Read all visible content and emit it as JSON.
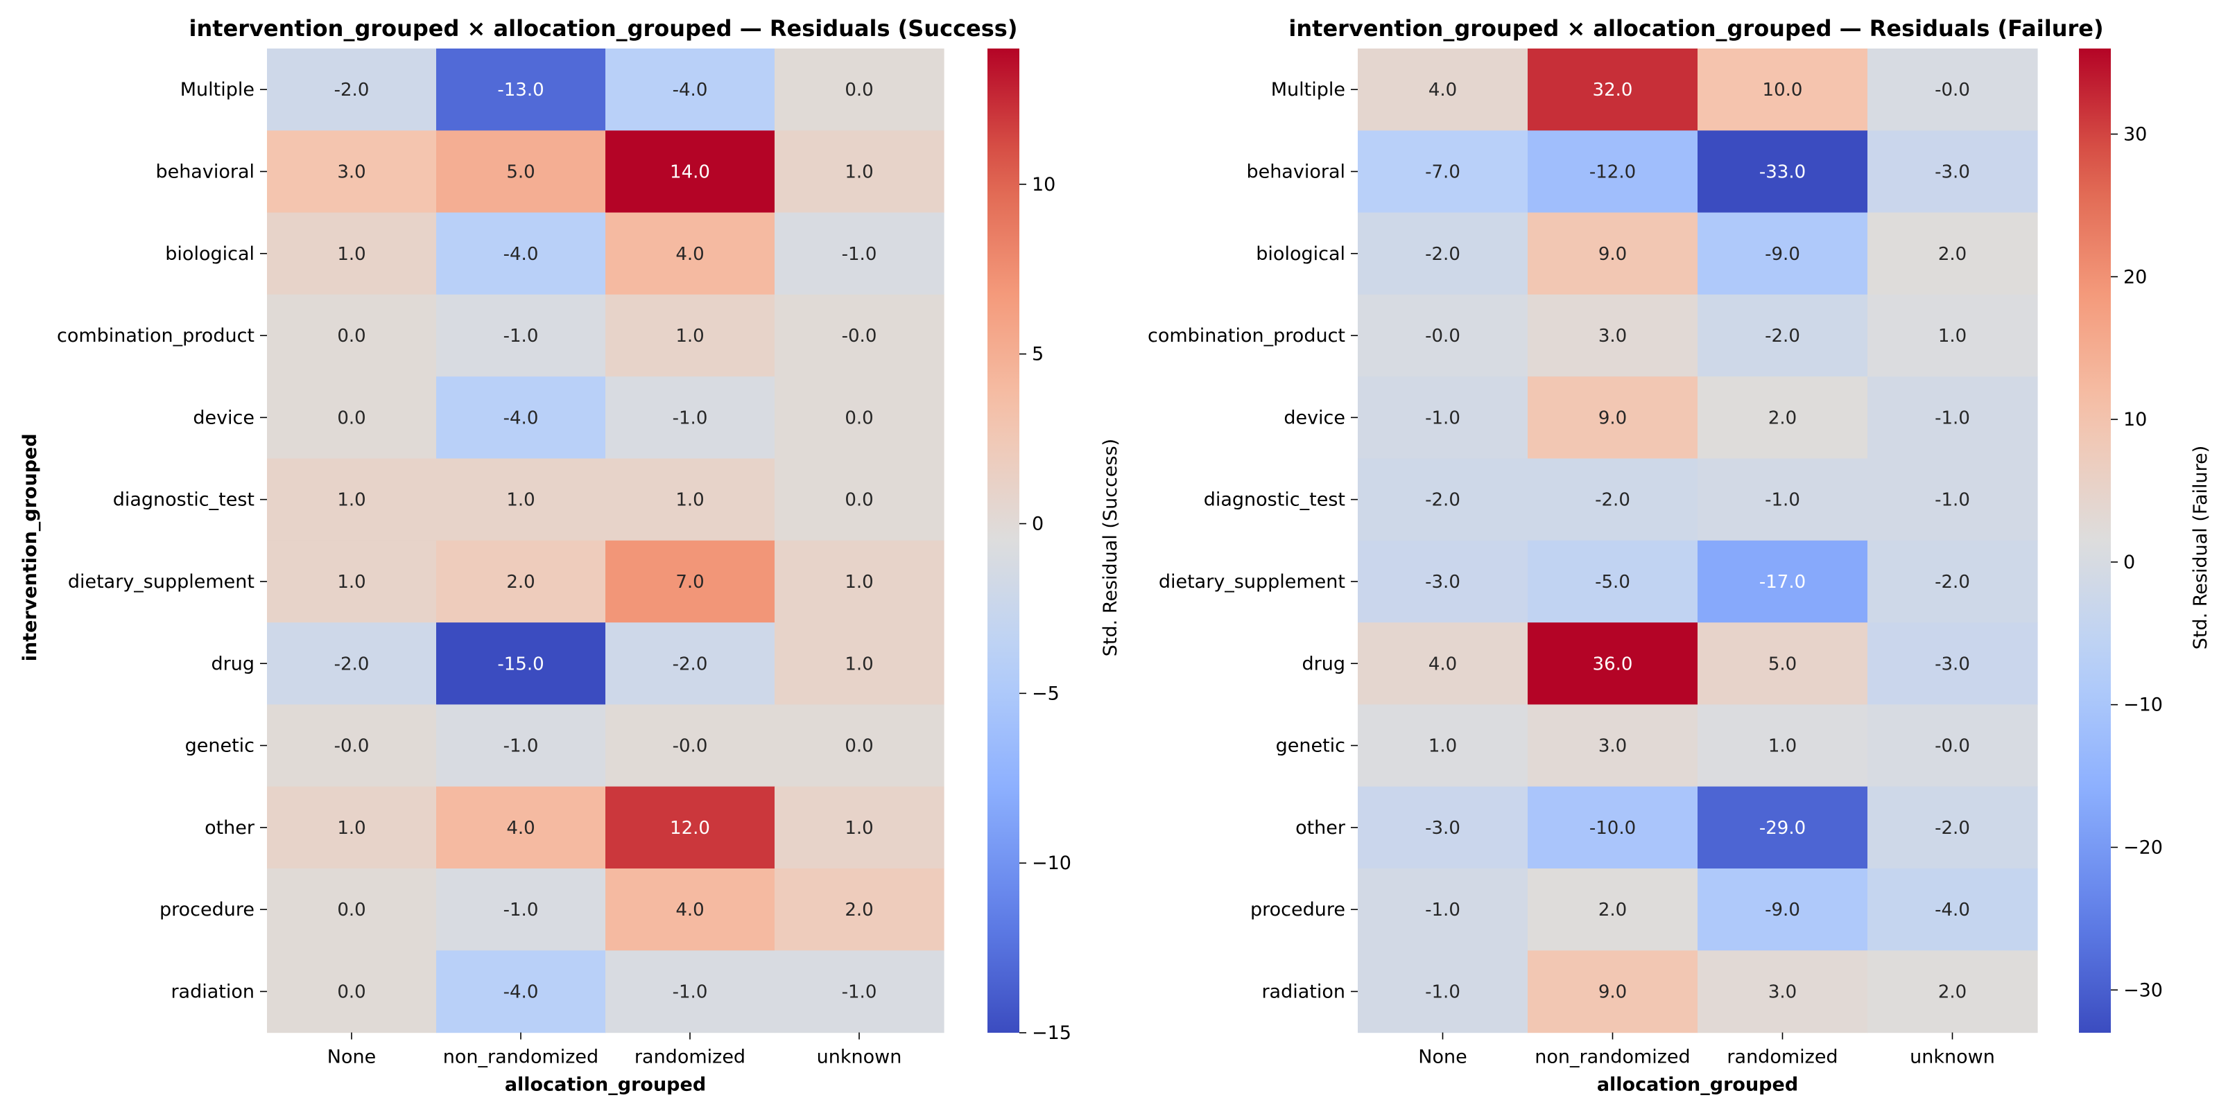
{
  "chart_data": [
    {
      "type": "heatmap",
      "title": "intervention_grouped × allocation_grouped — Residuals (Success)",
      "xlabel": "allocation_grouped",
      "ylabel": "intervention_grouped",
      "colorbar_label": "Std. Residual (Success)",
      "colormap": "coolwarm",
      "vmin": -15,
      "vmax": 14,
      "colorbar_ticks": [
        -15,
        -10,
        -5,
        0,
        5,
        10
      ],
      "colorbar_tick_labels": [
        "−15",
        "−10",
        "−5",
        "0",
        "5",
        "10"
      ],
      "x_categories": [
        "None",
        "non_randomized",
        "randomized",
        "unknown"
      ],
      "y_categories": [
        "Multiple",
        "behavioral",
        "biological",
        "combination_product",
        "device",
        "diagnostic_test",
        "dietary_supplement",
        "drug",
        "genetic",
        "other",
        "procedure",
        "radiation"
      ],
      "values": [
        [
          -2.0,
          -13.0,
          -4.0,
          0.0
        ],
        [
          3.0,
          5.0,
          14.0,
          1.0
        ],
        [
          1.0,
          -4.0,
          4.0,
          -1.0
        ],
        [
          0.0,
          -1.0,
          1.0,
          -0.0
        ],
        [
          0.0,
          -4.0,
          -1.0,
          0.0
        ],
        [
          1.0,
          1.0,
          1.0,
          0.0
        ],
        [
          1.0,
          2.0,
          7.0,
          1.0
        ],
        [
          -2.0,
          -15.0,
          -2.0,
          1.0
        ],
        [
          -0.0,
          -1.0,
          -0.0,
          0.0
        ],
        [
          1.0,
          4.0,
          12.0,
          1.0
        ],
        [
          0.0,
          -1.0,
          4.0,
          2.0
        ],
        [
          0.0,
          -4.0,
          -1.0,
          -1.0
        ]
      ],
      "annotations": [
        [
          "-2.0",
          "-13.0",
          "-4.0",
          "0.0"
        ],
        [
          "3.0",
          "5.0",
          "14.0",
          "1.0"
        ],
        [
          "1.0",
          "-4.0",
          "4.0",
          "-1.0"
        ],
        [
          "0.0",
          "-1.0",
          "1.0",
          "-0.0"
        ],
        [
          "0.0",
          "-4.0",
          "-1.0",
          "0.0"
        ],
        [
          "1.0",
          "1.0",
          "1.0",
          "0.0"
        ],
        [
          "1.0",
          "2.0",
          "7.0",
          "1.0"
        ],
        [
          "-2.0",
          "-15.0",
          "-2.0",
          "1.0"
        ],
        [
          "-0.0",
          "-1.0",
          "-0.0",
          "0.0"
        ],
        [
          "1.0",
          "4.0",
          "12.0",
          "1.0"
        ],
        [
          "0.0",
          "-1.0",
          "4.0",
          "2.0"
        ],
        [
          "0.0",
          "-4.0",
          "-1.0",
          "-1.0"
        ]
      ]
    },
    {
      "type": "heatmap",
      "title": "intervention_grouped × allocation_grouped — Residuals (Failure)",
      "xlabel": "allocation_grouped",
      "ylabel": "",
      "colorbar_label": "Std. Residual (Failure)",
      "colormap": "coolwarm",
      "vmin": -33,
      "vmax": 36,
      "colorbar_ticks": [
        -30,
        -20,
        -10,
        0,
        10,
        20,
        30
      ],
      "colorbar_tick_labels": [
        "−30",
        "−20",
        "−10",
        "0",
        "10",
        "20",
        "30"
      ],
      "x_categories": [
        "None",
        "non_randomized",
        "randomized",
        "unknown"
      ],
      "y_categories": [
        "Multiple",
        "behavioral",
        "biological",
        "combination_product",
        "device",
        "diagnostic_test",
        "dietary_supplement",
        "drug",
        "genetic",
        "other",
        "procedure",
        "radiation"
      ],
      "values": [
        [
          4.0,
          32.0,
          10.0,
          -0.0
        ],
        [
          -7.0,
          -12.0,
          -33.0,
          -3.0
        ],
        [
          -2.0,
          9.0,
          -9.0,
          2.0
        ],
        [
          -0.0,
          3.0,
          -2.0,
          1.0
        ],
        [
          -1.0,
          9.0,
          2.0,
          -1.0
        ],
        [
          -2.0,
          -2.0,
          -1.0,
          -1.0
        ],
        [
          -3.0,
          -5.0,
          -17.0,
          -2.0
        ],
        [
          4.0,
          36.0,
          5.0,
          -3.0
        ],
        [
          1.0,
          3.0,
          1.0,
          -0.0
        ],
        [
          -3.0,
          -10.0,
          -29.0,
          -2.0
        ],
        [
          -1.0,
          2.0,
          -9.0,
          -4.0
        ],
        [
          -1.0,
          9.0,
          3.0,
          2.0
        ]
      ],
      "annotations": [
        [
          "4.0",
          "32.0",
          "10.0",
          "-0.0"
        ],
        [
          "-7.0",
          "-12.0",
          "-33.0",
          "-3.0"
        ],
        [
          "-2.0",
          "9.0",
          "-9.0",
          "2.0"
        ],
        [
          "-0.0",
          "3.0",
          "-2.0",
          "1.0"
        ],
        [
          "-1.0",
          "9.0",
          "2.0",
          "-1.0"
        ],
        [
          "-2.0",
          "-2.0",
          "-1.0",
          "-1.0"
        ],
        [
          "-3.0",
          "-5.0",
          "-17.0",
          "-2.0"
        ],
        [
          "4.0",
          "36.0",
          "5.0",
          "-3.0"
        ],
        [
          "1.0",
          "3.0",
          "1.0",
          "-0.0"
        ],
        [
          "-3.0",
          "-10.0",
          "-29.0",
          "-2.0"
        ],
        [
          "-1.0",
          "2.0",
          "-9.0",
          "-4.0"
        ],
        [
          "-1.0",
          "9.0",
          "3.0",
          "2.0"
        ]
      ]
    }
  ]
}
